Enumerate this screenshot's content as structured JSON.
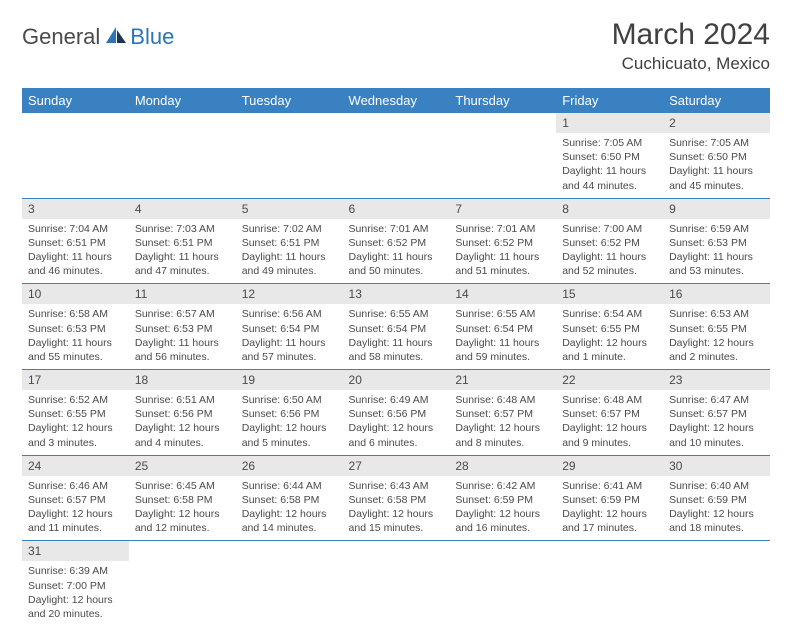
{
  "logo": {
    "general": "General",
    "blue": "Blue"
  },
  "title": "March 2024",
  "location": "Cuchicuato, Mexico",
  "colors": {
    "header_bg": "#3a81c1",
    "header_text": "#ffffff",
    "daynum_bg": "#e8e8e8",
    "rule": "#3a81c1",
    "logo_blue": "#2e74b5",
    "logo_dark": "#17365d"
  },
  "fonts": {
    "title_size_pt": 22,
    "location_size_pt": 13,
    "dayhead_size_pt": 10,
    "body_size_pt": 8
  },
  "weekdays": [
    "Sunday",
    "Monday",
    "Tuesday",
    "Wednesday",
    "Thursday",
    "Friday",
    "Saturday"
  ],
  "weeks": [
    [
      {
        "n": "",
        "sr": "",
        "ss": "",
        "dl": ""
      },
      {
        "n": "",
        "sr": "",
        "ss": "",
        "dl": ""
      },
      {
        "n": "",
        "sr": "",
        "ss": "",
        "dl": ""
      },
      {
        "n": "",
        "sr": "",
        "ss": "",
        "dl": ""
      },
      {
        "n": "",
        "sr": "",
        "ss": "",
        "dl": ""
      },
      {
        "n": "1",
        "sr": "Sunrise: 7:05 AM",
        "ss": "Sunset: 6:50 PM",
        "dl": "Daylight: 11 hours and 44 minutes."
      },
      {
        "n": "2",
        "sr": "Sunrise: 7:05 AM",
        "ss": "Sunset: 6:50 PM",
        "dl": "Daylight: 11 hours and 45 minutes."
      }
    ],
    [
      {
        "n": "3",
        "sr": "Sunrise: 7:04 AM",
        "ss": "Sunset: 6:51 PM",
        "dl": "Daylight: 11 hours and 46 minutes."
      },
      {
        "n": "4",
        "sr": "Sunrise: 7:03 AM",
        "ss": "Sunset: 6:51 PM",
        "dl": "Daylight: 11 hours and 47 minutes."
      },
      {
        "n": "5",
        "sr": "Sunrise: 7:02 AM",
        "ss": "Sunset: 6:51 PM",
        "dl": "Daylight: 11 hours and 49 minutes."
      },
      {
        "n": "6",
        "sr": "Sunrise: 7:01 AM",
        "ss": "Sunset: 6:52 PM",
        "dl": "Daylight: 11 hours and 50 minutes."
      },
      {
        "n": "7",
        "sr": "Sunrise: 7:01 AM",
        "ss": "Sunset: 6:52 PM",
        "dl": "Daylight: 11 hours and 51 minutes."
      },
      {
        "n": "8",
        "sr": "Sunrise: 7:00 AM",
        "ss": "Sunset: 6:52 PM",
        "dl": "Daylight: 11 hours and 52 minutes."
      },
      {
        "n": "9",
        "sr": "Sunrise: 6:59 AM",
        "ss": "Sunset: 6:53 PM",
        "dl": "Daylight: 11 hours and 53 minutes."
      }
    ],
    [
      {
        "n": "10",
        "sr": "Sunrise: 6:58 AM",
        "ss": "Sunset: 6:53 PM",
        "dl": "Daylight: 11 hours and 55 minutes."
      },
      {
        "n": "11",
        "sr": "Sunrise: 6:57 AM",
        "ss": "Sunset: 6:53 PM",
        "dl": "Daylight: 11 hours and 56 minutes."
      },
      {
        "n": "12",
        "sr": "Sunrise: 6:56 AM",
        "ss": "Sunset: 6:54 PM",
        "dl": "Daylight: 11 hours and 57 minutes."
      },
      {
        "n": "13",
        "sr": "Sunrise: 6:55 AM",
        "ss": "Sunset: 6:54 PM",
        "dl": "Daylight: 11 hours and 58 minutes."
      },
      {
        "n": "14",
        "sr": "Sunrise: 6:55 AM",
        "ss": "Sunset: 6:54 PM",
        "dl": "Daylight: 11 hours and 59 minutes."
      },
      {
        "n": "15",
        "sr": "Sunrise: 6:54 AM",
        "ss": "Sunset: 6:55 PM",
        "dl": "Daylight: 12 hours and 1 minute."
      },
      {
        "n": "16",
        "sr": "Sunrise: 6:53 AM",
        "ss": "Sunset: 6:55 PM",
        "dl": "Daylight: 12 hours and 2 minutes."
      }
    ],
    [
      {
        "n": "17",
        "sr": "Sunrise: 6:52 AM",
        "ss": "Sunset: 6:55 PM",
        "dl": "Daylight: 12 hours and 3 minutes."
      },
      {
        "n": "18",
        "sr": "Sunrise: 6:51 AM",
        "ss": "Sunset: 6:56 PM",
        "dl": "Daylight: 12 hours and 4 minutes."
      },
      {
        "n": "19",
        "sr": "Sunrise: 6:50 AM",
        "ss": "Sunset: 6:56 PM",
        "dl": "Daylight: 12 hours and 5 minutes."
      },
      {
        "n": "20",
        "sr": "Sunrise: 6:49 AM",
        "ss": "Sunset: 6:56 PM",
        "dl": "Daylight: 12 hours and 6 minutes."
      },
      {
        "n": "21",
        "sr": "Sunrise: 6:48 AM",
        "ss": "Sunset: 6:57 PM",
        "dl": "Daylight: 12 hours and 8 minutes."
      },
      {
        "n": "22",
        "sr": "Sunrise: 6:48 AM",
        "ss": "Sunset: 6:57 PM",
        "dl": "Daylight: 12 hours and 9 minutes."
      },
      {
        "n": "23",
        "sr": "Sunrise: 6:47 AM",
        "ss": "Sunset: 6:57 PM",
        "dl": "Daylight: 12 hours and 10 minutes."
      }
    ],
    [
      {
        "n": "24",
        "sr": "Sunrise: 6:46 AM",
        "ss": "Sunset: 6:57 PM",
        "dl": "Daylight: 12 hours and 11 minutes."
      },
      {
        "n": "25",
        "sr": "Sunrise: 6:45 AM",
        "ss": "Sunset: 6:58 PM",
        "dl": "Daylight: 12 hours and 12 minutes."
      },
      {
        "n": "26",
        "sr": "Sunrise: 6:44 AM",
        "ss": "Sunset: 6:58 PM",
        "dl": "Daylight: 12 hours and 14 minutes."
      },
      {
        "n": "27",
        "sr": "Sunrise: 6:43 AM",
        "ss": "Sunset: 6:58 PM",
        "dl": "Daylight: 12 hours and 15 minutes."
      },
      {
        "n": "28",
        "sr": "Sunrise: 6:42 AM",
        "ss": "Sunset: 6:59 PM",
        "dl": "Daylight: 12 hours and 16 minutes."
      },
      {
        "n": "29",
        "sr": "Sunrise: 6:41 AM",
        "ss": "Sunset: 6:59 PM",
        "dl": "Daylight: 12 hours and 17 minutes."
      },
      {
        "n": "30",
        "sr": "Sunrise: 6:40 AM",
        "ss": "Sunset: 6:59 PM",
        "dl": "Daylight: 12 hours and 18 minutes."
      }
    ],
    [
      {
        "n": "31",
        "sr": "Sunrise: 6:39 AM",
        "ss": "Sunset: 7:00 PM",
        "dl": "Daylight: 12 hours and 20 minutes."
      },
      {
        "n": "",
        "sr": "",
        "ss": "",
        "dl": ""
      },
      {
        "n": "",
        "sr": "",
        "ss": "",
        "dl": ""
      },
      {
        "n": "",
        "sr": "",
        "ss": "",
        "dl": ""
      },
      {
        "n": "",
        "sr": "",
        "ss": "",
        "dl": ""
      },
      {
        "n": "",
        "sr": "",
        "ss": "",
        "dl": ""
      },
      {
        "n": "",
        "sr": "",
        "ss": "",
        "dl": ""
      }
    ]
  ]
}
